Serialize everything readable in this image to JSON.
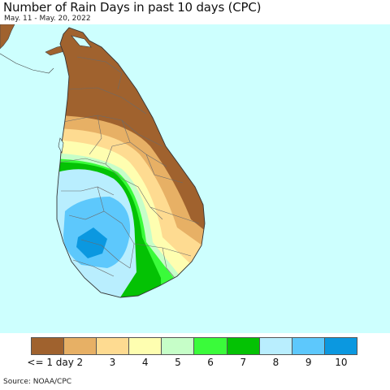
{
  "header": {
    "title": "Number of Rain Days in past 10 days (CPC)",
    "date_range": "May. 11 - May. 20, 2022"
  },
  "map": {
    "region_shown": "Sri Lanka",
    "ocean_color": "#cdfffe"
  },
  "legend": {
    "colors": [
      "#a0622e",
      "#e7b065",
      "#fedb91",
      "#fefeb0",
      "#c6fec8",
      "#3afb3a",
      "#04c204",
      "#b9eefe",
      "#5dc8fc",
      "#0b98e0"
    ],
    "labels": [
      "<= 1 day",
      "2",
      "3",
      "4",
      "5",
      "6",
      "7",
      "8",
      "9",
      "10"
    ]
  },
  "footer": {
    "source": "Source: NOAA/CPC"
  }
}
